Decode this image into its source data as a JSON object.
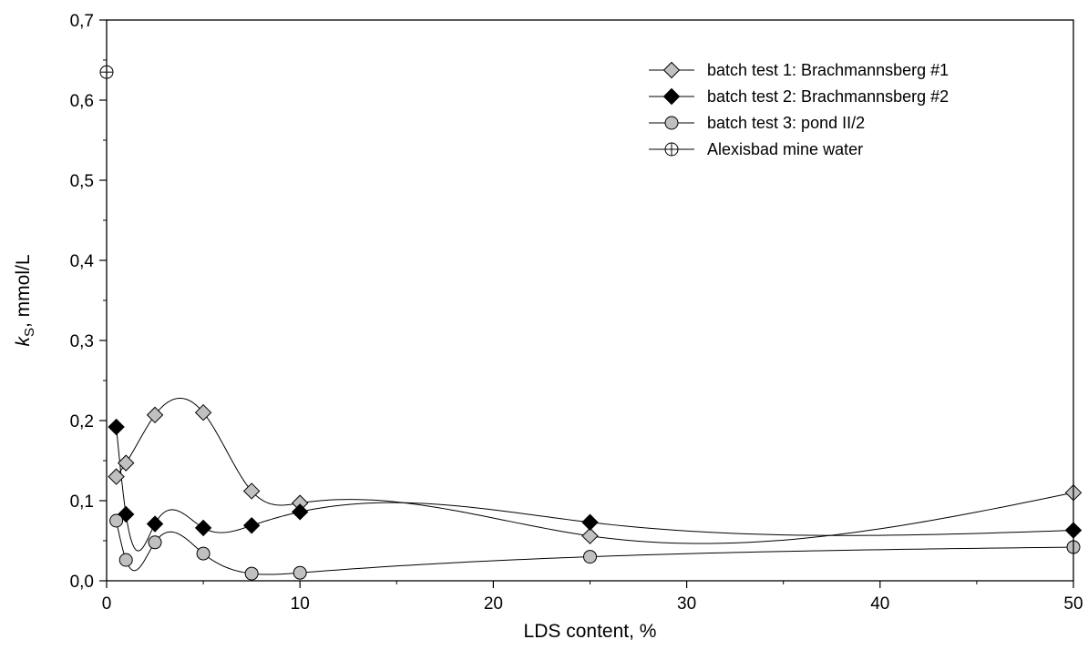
{
  "chart_data": {
    "type": "line",
    "xlabel": "LDS content, %",
    "ylabel_italic": "k",
    "ylabel_sub": "S",
    "ylabel_rest": ", mmol/L",
    "xlim": [
      0,
      50
    ],
    "ylim": [
      0,
      0.7
    ],
    "x_ticks": [
      0,
      10,
      20,
      30,
      40,
      50
    ],
    "x_tick_labels": [
      "0",
      "10",
      "20",
      "30",
      "40",
      "50"
    ],
    "y_ticks": [
      0,
      0.1,
      0.2,
      0.3,
      0.4,
      0.5,
      0.6,
      0.7
    ],
    "y_tick_labels": [
      "0,0",
      "0,1",
      "0,2",
      "0,3",
      "0,4",
      "0,5",
      "0,6",
      "0,7"
    ],
    "grid": false,
    "legend_position": "top-right",
    "series": [
      {
        "name": "batch test 1: Brachmannsberg #1",
        "marker": "diamond",
        "fill": "#c0c0c0",
        "line": "spline",
        "x": [
          0.5,
          1,
          2.5,
          5,
          7.5,
          10,
          25,
          50
        ],
        "y": [
          0.13,
          0.147,
          0.207,
          0.21,
          0.112,
          0.097,
          0.056,
          0.11
        ]
      },
      {
        "name": "batch test 2: Brachmannsberg #2",
        "marker": "diamond",
        "fill": "#000000",
        "line": "spline",
        "x": [
          0.5,
          1,
          2.5,
          5,
          7.5,
          10,
          25,
          50
        ],
        "y": [
          0.192,
          0.083,
          0.071,
          0.066,
          0.069,
          0.086,
          0.073,
          0.063
        ]
      },
      {
        "name": "batch test 3: pond II/2",
        "marker": "circle",
        "fill": "#c0c0c0",
        "line": "spline",
        "x": [
          0.5,
          1,
          2.5,
          5,
          7.5,
          10,
          25,
          50
        ],
        "y": [
          0.075,
          0.026,
          0.048,
          0.034,
          0.009,
          0.01,
          0.03,
          0.042
        ]
      },
      {
        "name": "Alexisbad mine water",
        "marker": "circle-plus",
        "fill": "#ffffff",
        "line": "none",
        "x": [
          0
        ],
        "y": [
          0.635
        ]
      }
    ]
  }
}
